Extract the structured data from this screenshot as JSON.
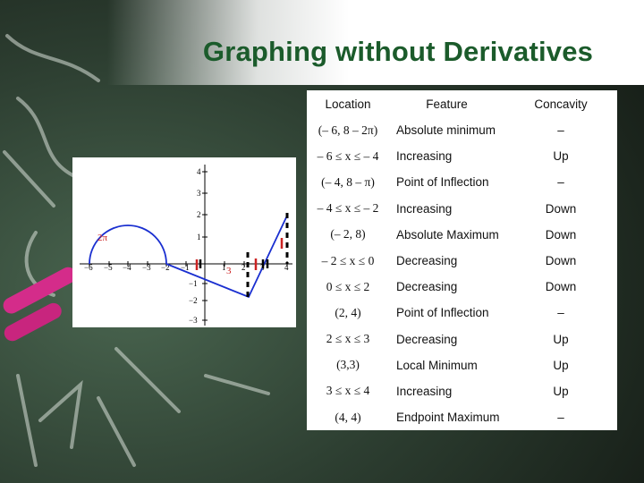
{
  "title": "Graphing without Derivatives",
  "colors": {
    "title": "#1b5b2b",
    "board": "#2b3a2e",
    "curve_blue": "#1a2fd0",
    "marker_red": "#cc2222"
  },
  "graph": {
    "x_ticks": [
      "−6",
      "−5",
      "−4",
      "−3",
      "−2",
      "−1",
      "1",
      "2",
      "3",
      "4"
    ],
    "y_ticks": [
      "4",
      "3",
      "2",
      "1",
      "−1",
      "−2",
      "−3"
    ],
    "label_2pi": "2π",
    "label_3": "3"
  },
  "table": {
    "headers": [
      "Location",
      "Feature",
      "Concavity"
    ],
    "rows": [
      {
        "location": "(– 6, 8 – 2π)",
        "feature": "Absolute minimum",
        "concavity": "–"
      },
      {
        "location": "– 6 ≤ x ≤  – 4",
        "feature": "Increasing",
        "concavity": "Up"
      },
      {
        "location": "(– 4, 8 – π)",
        "feature": "Point of Inflection",
        "concavity": "–"
      },
      {
        "location": "– 4 ≤ x ≤  – 2",
        "feature": "Increasing",
        "concavity": "Down"
      },
      {
        "location": "(– 2, 8)",
        "feature": "Absolute Maximum",
        "concavity": "Down"
      },
      {
        "location": "– 2 ≤ x ≤ 0",
        "feature": "Decreasing",
        "concavity": "Down"
      },
      {
        "location": "0 ≤ x ≤ 2",
        "feature": "Decreasing",
        "concavity": "Down"
      },
      {
        "location": "(2, 4)",
        "feature": "Point of Inflection",
        "concavity": "–"
      },
      {
        "location": "2 ≤ x ≤ 3",
        "feature": "Decreasing",
        "concavity": "Up"
      },
      {
        "location": "(3,3)",
        "feature": "Local Minimum",
        "concavity": "Up"
      },
      {
        "location": "3 ≤  x ≤ 4",
        "feature": "Increasing",
        "concavity": "Up"
      },
      {
        "location": "(4, 4)",
        "feature": "Endpoint Maximum",
        "concavity": "–"
      }
    ]
  }
}
